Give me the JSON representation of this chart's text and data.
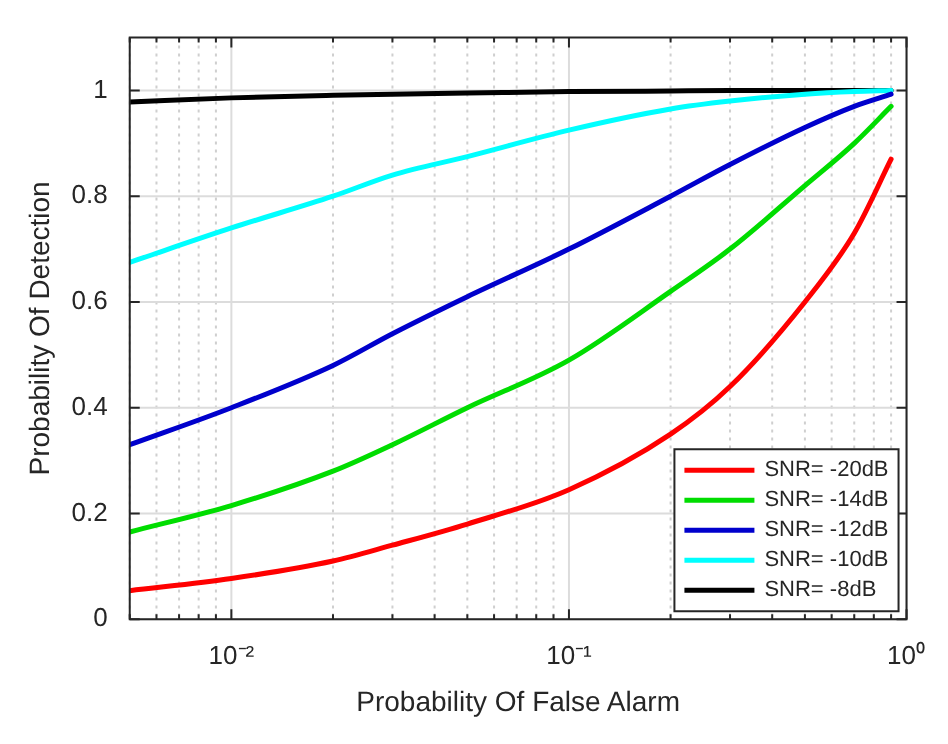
{
  "chart_data": {
    "type": "line",
    "xlabel": "Probability Of False Alarm",
    "ylabel": "Probability Of Detection",
    "log": "x",
    "x": [
      0.005,
      0.01,
      0.02,
      0.03,
      0.05,
      0.1,
      0.2,
      0.3,
      0.5,
      0.7,
      0.9
    ],
    "series": [
      {
        "name": "SNR= -20dB",
        "color": "#ff0000",
        "values": [
          0.054,
          0.077,
          0.11,
          0.14,
          0.18,
          0.245,
          0.35,
          0.44,
          0.6,
          0.73,
          0.87
        ]
      },
      {
        "name": "SNR= -14dB",
        "color": "#00dd00",
        "values": [
          0.165,
          0.215,
          0.28,
          0.33,
          0.4,
          0.49,
          0.62,
          0.7,
          0.82,
          0.9,
          0.97
        ]
      },
      {
        "name": "SNR= -12dB",
        "color": "#0000cc",
        "values": [
          0.33,
          0.4,
          0.48,
          0.54,
          0.61,
          0.7,
          0.8,
          0.86,
          0.93,
          0.97,
          0.993
        ]
      },
      {
        "name": "SNR= -10dB",
        "color": "#00ffff",
        "values": [
          0.675,
          0.74,
          0.8,
          0.84,
          0.875,
          0.925,
          0.965,
          0.98,
          0.993,
          0.998,
          1.0
        ]
      },
      {
        "name": "SNR= -8dB",
        "color": "#000000",
        "values": [
          0.978,
          0.986,
          0.991,
          0.993,
          0.995,
          0.998,
          0.999,
          1.0,
          1.0,
          1.0,
          1.0
        ]
      }
    ],
    "xlim": [
      0.005,
      1
    ],
    "ylim": [
      0,
      1.1
    ],
    "xticks": [
      {
        "value": 0.005,
        "label": null
      },
      {
        "value": 0.006,
        "label": null
      },
      {
        "value": 0.007,
        "label": null
      },
      {
        "value": 0.008,
        "label": null
      },
      {
        "value": 0.009,
        "label": null
      },
      {
        "value": 0.01,
        "label": "10⁻²"
      },
      {
        "value": 0.02,
        "label": null
      },
      {
        "value": 0.03,
        "label": null
      },
      {
        "value": 0.04,
        "label": null
      },
      {
        "value": 0.05,
        "label": null
      },
      {
        "value": 0.06,
        "label": null
      },
      {
        "value": 0.07,
        "label": null
      },
      {
        "value": 0.08,
        "label": null
      },
      {
        "value": 0.09,
        "label": null
      },
      {
        "value": 0.1,
        "label": "10⁻¹"
      },
      {
        "value": 0.2,
        "label": null
      },
      {
        "value": 0.3,
        "label": null
      },
      {
        "value": 0.4,
        "label": null
      },
      {
        "value": 0.5,
        "label": null
      },
      {
        "value": 0.6,
        "label": null
      },
      {
        "value": 0.7,
        "label": null
      },
      {
        "value": 0.8,
        "label": null
      },
      {
        "value": 0.9,
        "label": null
      },
      {
        "value": 1,
        "label": "10⁰"
      }
    ],
    "yticks": [
      0,
      0.2,
      0.4,
      0.6,
      0.8,
      1
    ],
    "grid": true,
    "legend": "bottom right",
    "line_style": "solid",
    "marker": "none"
  }
}
